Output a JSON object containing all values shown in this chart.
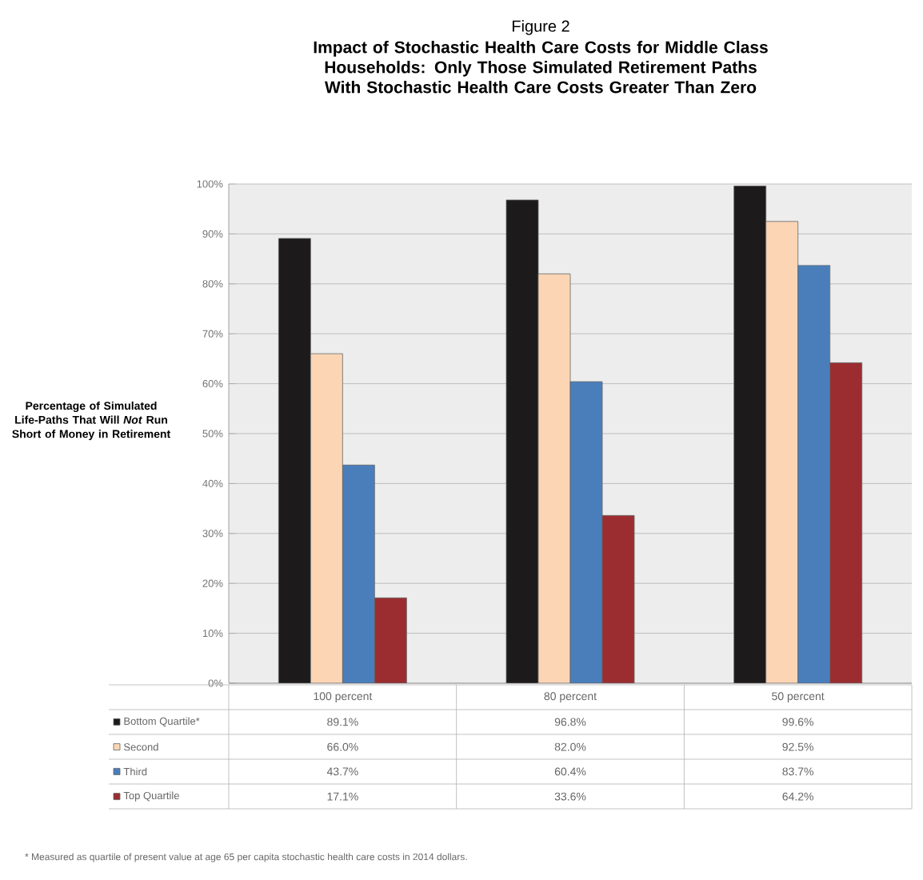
{
  "chart_data": {
    "type": "bar",
    "title": "Figure 2",
    "subtitle": "Impact of Stochastic Health Care Costs for Middle Class Households: Only Those Simulated Retirement Paths With Stochastic Health Care Costs Greater Than Zero",
    "ylabel": "Percentage of Simulated Life-Paths That Will *Not* Run Short of Money in Retirement",
    "categories": [
      "100 percent",
      "80 percent",
      "50 percent"
    ],
    "series": [
      {
        "name": "Bottom Quartile*",
        "color": "#1c1a1a",
        "values": [
          89.1,
          96.8,
          99.6
        ],
        "value_labels": [
          "89.1%",
          "96.8%",
          "99.6%"
        ]
      },
      {
        "name": "Second",
        "color": "#fcd5b5",
        "values": [
          66.0,
          82.0,
          92.5
        ],
        "value_labels": [
          "66.0%",
          "82.0%",
          "92.5%"
        ]
      },
      {
        "name": "Third",
        "color": "#4a7ebb",
        "values": [
          43.7,
          60.4,
          83.7
        ],
        "value_labels": [
          "43.7%",
          "60.4%",
          "83.7%"
        ]
      },
      {
        "name": "Top Quartile",
        "color": "#9b2d30",
        "values": [
          17.1,
          33.6,
          64.2
        ],
        "value_labels": [
          "17.1%",
          "33.6%",
          "64.2%"
        ]
      }
    ],
    "ylim": [
      0,
      100
    ],
    "yticks": [
      {
        "value": 0,
        "label": "0%"
      },
      {
        "value": 10,
        "label": "10%"
      },
      {
        "value": 20,
        "label": "20%"
      },
      {
        "value": 30,
        "label": "30%"
      },
      {
        "value": 40,
        "label": "40%"
      },
      {
        "value": 50,
        "label": "50%"
      },
      {
        "value": 60,
        "label": "60%"
      },
      {
        "value": 70,
        "label": "70%"
      },
      {
        "value": 80,
        "label": "80%"
      },
      {
        "value": 90,
        "label": "90%"
      },
      {
        "value": 100,
        "label": "100%"
      }
    ],
    "grid": "y",
    "legend": "bottom",
    "annotations": [
      "* Measured as quartile of present value at age 65 per capita stochastic health care costs in 2014 dollars."
    ]
  }
}
